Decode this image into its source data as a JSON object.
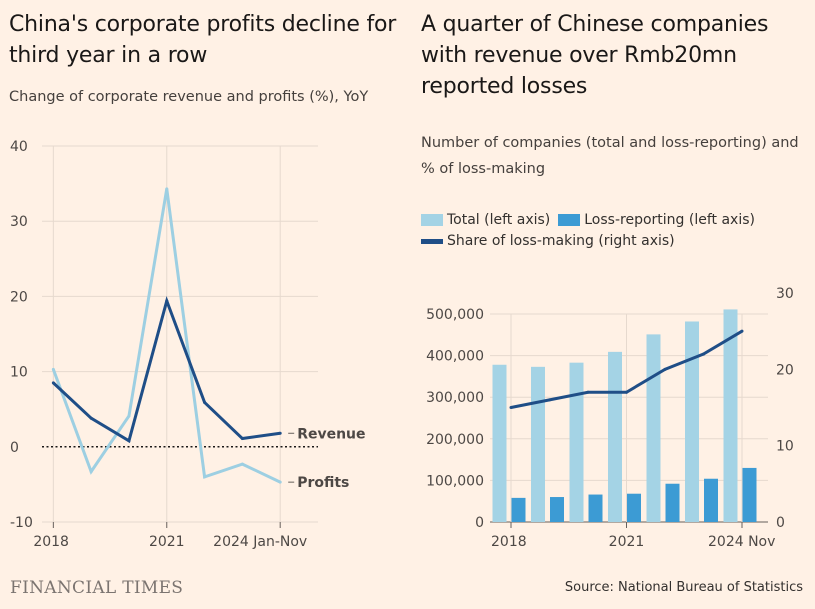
{
  "left": {
    "title": "China's corporate profits decline for third year in a row",
    "subtitle": "Change of corporate revenue and profits (%), YoY"
  },
  "right": {
    "title": "A quarter of Chinese companies with revenue over Rmb20mn reported losses",
    "subtitle": "Number of companies (total and loss-reporting) and % of loss-making",
    "legend": {
      "total": "Total (left axis)",
      "loss": "Loss-reporting (left axis)",
      "share": "Share of loss-making (right axis)"
    }
  },
  "footer": {
    "logo": "FINANCIAL TIMES",
    "source": "Source: National Bureau of Statistics"
  },
  "colors": {
    "revenue": "#1f4e87",
    "profits": "#9dcfe2",
    "total": "#a4d3e5",
    "loss": "#3c9bd4",
    "share": "#1f4e87",
    "zero_line": "#1a1817",
    "grid": "#e6d9ce"
  },
  "chart_data": [
    {
      "type": "line",
      "title": "China's corporate profits decline for third year in a row",
      "subtitle": "Change of corporate revenue and profits (%), YoY",
      "x": [
        2018,
        2019,
        2020,
        2021,
        2022,
        2023,
        2024
      ],
      "x_tick_labels": [
        "2018",
        "2021",
        "2024 Jan-Nov"
      ],
      "x_tick_values": [
        2018,
        2021,
        2024
      ],
      "ylim": [
        -10,
        40
      ],
      "y_ticks": [
        -10,
        0,
        10,
        20,
        30,
        40
      ],
      "grid": true,
      "series": [
        {
          "name": "Revenue",
          "values": [
            8.5,
            3.8,
            0.8,
            19.4,
            5.9,
            1.1,
            1.8
          ]
        },
        {
          "name": "Profits",
          "values": [
            10.3,
            -3.3,
            4.1,
            34.3,
            -4.0,
            -2.3,
            -4.7
          ]
        }
      ]
    },
    {
      "type": "bar",
      "title": "A quarter of Chinese companies with revenue over Rmb20mn reported losses",
      "subtitle": "Number of companies (total and loss-reporting) and % of loss-making",
      "categories": [
        "2018",
        "2019",
        "2020",
        "2021",
        "2022",
        "2023",
        "2024 Nov"
      ],
      "x_tick_labels": [
        "2018",
        "2021",
        "2024 Nov"
      ],
      "x_tick_indices": [
        0,
        3,
        6
      ],
      "ylim": [
        0,
        500000
      ],
      "y_ticks": [
        0,
        100000,
        200000,
        300000,
        400000,
        500000
      ],
      "y_tick_labels": [
        "0",
        "100,000",
        "200,000",
        "300,000",
        "400,000",
        "500,000"
      ],
      "y2lim": [
        0,
        30
      ],
      "y2_ticks": [
        0,
        10,
        20,
        30
      ],
      "grid": true,
      "series": [
        {
          "name": "Total (left axis)",
          "axis": "left",
          "values": [
            378000,
            373000,
            383000,
            409000,
            451000,
            482000,
            511000
          ]
        },
        {
          "name": "Loss-reporting (left axis)",
          "axis": "left",
          "values": [
            58000,
            60000,
            66000,
            68000,
            92000,
            104000,
            130000
          ]
        },
        {
          "name": "Share of loss-making (right axis)",
          "axis": "right",
          "type": "line",
          "values": [
            15,
            16,
            17,
            17,
            20,
            22,
            25
          ]
        }
      ]
    }
  ]
}
